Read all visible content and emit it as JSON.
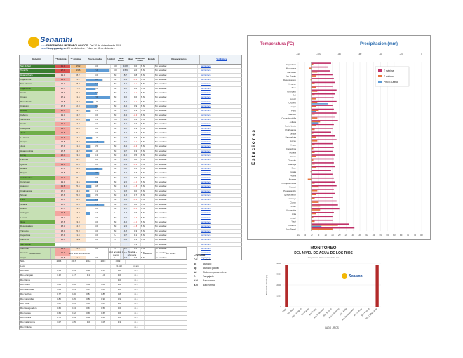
{
  "header": {
    "logo_text": "Senamhi",
    "logo_sub": "Servicio Nacional de Meteorología e Hidrología",
    "title": "DATOS HIDRO-METEOROLÓGICOS",
    "date": "Del 30 de diciembre de 2019",
    "note": "*Temp y precip. de 29 de diciembre / *Nivel de 30 de diciembre"
  },
  "table": {
    "headers": [
      "Estación",
      "*T máxima",
      "*T mínima",
      "Precip. media",
      "Umbral",
      "*Nivel actual",
      "Nivel",
      "Tendencia *Nivel",
      "Estado",
      "Observaciones",
      "Ver Enlace"
    ],
    "rows": [
      [
        "San Rafael",
        "31.0",
        "15.2",
        "0.0",
        "CO",
        "10.8",
        "0.0",
        "N.N",
        "Sin novedad",
        "Ver Enlace"
      ],
      [
        "Tocache",
        "27.4",
        "19.6",
        "7.2",
        "CO",
        "15.9",
        "2.0",
        "N.N",
        "Sin novedad",
        "Ver Enlace"
      ],
      [
        "Huamachuco",
        "19.0",
        "8.2",
        "0.0",
        "Nx",
        "8.7",
        "0.8",
        "N.N",
        "Sin novedad",
        "Ver Enlace"
      ],
      [
        "Cajabamba",
        "19.9",
        "5.2",
        "4.8",
        "Nx",
        "4.9",
        "-0.1",
        "N.N",
        "Sin novedad",
        "Ver Enlace"
      ],
      [
        "San Marcos",
        "16.0",
        "8.2",
        "3.1",
        "Nx",
        "4.0",
        "-0.2",
        "N.N",
        "Sin novedad",
        "Ver Enlace"
      ],
      [
        "Cajamarca",
        "15.5",
        "7.0",
        "2.2",
        "Nx",
        "3.8",
        "1.2",
        "N.N",
        "Sin novedad",
        "Ver Enlace"
      ],
      [
        "Chota",
        "18.9",
        "0.8",
        "2.7",
        "Nx",
        "1.6",
        "-0.7",
        "N.N",
        "Sin novedad",
        "Ver Enlace"
      ],
      [
        "Chugur",
        "17.2",
        "1.5",
        "7.6",
        "Nx",
        "3.5",
        "1.0",
        "N.N",
        "Sin novedad",
        "Ver Enlace"
      ],
      [
        "Pomabamba",
        "17.5",
        "2.9",
        "1.5",
        "Nx",
        "4.3",
        "-0.3",
        "N.N",
        "Sin novedad",
        "Ver Enlace"
      ],
      [
        "Chiquian",
        "17.6",
        "2.9",
        "2.9",
        "Nx",
        "4.3",
        "0.9",
        "N.N",
        "Sin novedad",
        "Ver Enlace"
      ],
      [
        "Recuay",
        "20.6",
        "4.1",
        "0.5",
        "Nx",
        "3.8",
        "1.3",
        "N.N",
        "Sin novedad",
        "Ver Enlace"
      ],
      [
        "Cabana",
        "19.0",
        "4.2",
        "0.0",
        "Nx",
        "4.3",
        "-0.1",
        "N.N",
        "Sin novedad",
        "Ver Enlace"
      ],
      [
        "Santa Ana",
        "12.0",
        "2.6",
        "0.4",
        "CO",
        "3.5",
        "0.4",
        "N.N",
        "Sin novedad",
        "Ver Enlace"
      ],
      [
        "Canta",
        "19.4",
        "4.2",
        "0.0",
        "Nx",
        "4.0",
        "0.3",
        "N.N",
        "Sin novedad",
        "Ver Enlace"
      ],
      [
        "Casapalca",
        "19.7",
        "2.0",
        "0.0",
        "Nx",
        "3.8",
        "1.3",
        "N.N",
        "Sin novedad",
        "Ver Enlace"
      ],
      [
        "Junín",
        "19.8",
        "6.6",
        "0.0",
        "Nx",
        "4.0",
        "0.4",
        "N.N",
        "Sin novedad",
        "Ver Enlace"
      ],
      [
        "La Oroya",
        "19.6",
        "4.5",
        "1.0",
        "Nx",
        "2.8",
        "1.7",
        "N.N",
        "Sin novedad",
        "Ver Enlace"
      ],
      [
        "Huayao",
        "17.5",
        "7.9",
        "5.4",
        "Nx",
        "3.5",
        "-0.7",
        "N.N",
        "Sin novedad",
        "Ver Enlace"
      ],
      [
        "Jauja",
        "17.9",
        "1.4",
        "0.5",
        "Nx",
        "4.9",
        "-0.1",
        "N.N",
        "Sin novedad",
        "Ver Enlace"
      ],
      [
        "Huancavelica",
        "17.5",
        "4.2",
        "1.0",
        "Nx",
        "3.7",
        "1.3",
        "N.N",
        "Sin novedad",
        "Ver Enlace"
      ],
      [
        "Lircay",
        "20.4",
        "3.4",
        "0.4",
        "Nx",
        "4.0",
        "0.5",
        "N.N",
        "Sin novedad",
        "Ver Enlace"
      ],
      [
        "Pampas",
        "17.0",
        "6.2",
        "0.0",
        "Nx",
        "4.4",
        "0.8",
        "N.N",
        "Sin novedad",
        "Ver Enlace"
      ],
      [
        "Quinua",
        "19.8",
        "8.0",
        "0.0",
        "Nx",
        "4.9",
        "-0.1",
        "N.N",
        "Sin novedad",
        "Ver Enlace"
      ],
      [
        "Huanta",
        "17.0",
        "4.8",
        "4.8",
        "Nx",
        "5.0",
        "0.5",
        "N.N",
        "Sin novedad",
        "Ver Enlace"
      ],
      [
        "Puquio",
        "17.5",
        "5.6",
        "3.5",
        "Nx",
        "4.2",
        "1.7",
        "N.N",
        "Sin novedad",
        "Ver Enlace"
      ],
      [
        "Andahuaylas",
        "19.9",
        "6.1",
        "0.0",
        "Nx",
        "3.9",
        "0.3",
        "N.N",
        "Sin novedad",
        "Ver Enlace"
      ],
      [
        "Curahuasi",
        "19.0",
        "1.6",
        "3.1",
        "Nx",
        "2.0",
        "-1.3",
        "N.N",
        "Sin novedad",
        "Ver Enlace"
      ],
      [
        "Abancay",
        "19.8",
        "5.4",
        "0.8",
        "Nx",
        "1.5",
        "-1.8",
        "N.N",
        "Sin novedad",
        "Ver Enlace"
      ],
      [
        "Chalhuanca",
        "17.7",
        "4.8",
        "0.1",
        "U",
        "3.8",
        "1.0",
        "N.N",
        "Sin novedad",
        "Ver Enlace"
      ],
      [
        "Sicuani",
        "17.6",
        "5.0",
        "0.5",
        "Nx",
        "1.8",
        "0.7",
        "N.N",
        "Sin novedad",
        "Ver Enlace"
      ],
      [
        "Puno",
        "16.0",
        "6.0",
        "3.1",
        "Nx",
        "3.1",
        "-0.1",
        "N.N",
        "Sin novedad",
        "Ver Enlace"
      ],
      [
        "Juliaca",
        "18.4",
        "6.0",
        "5.3",
        "Nx",
        "0.0",
        "0.0",
        "N.N",
        "Sin novedad",
        "Ver Enlace"
      ],
      [
        "Ayaviri",
        "17.5",
        "3.3",
        "0.0",
        "Nx",
        "1.8",
        "-0.8",
        "N.N",
        "Sin novedad",
        "Ver Enlace"
      ],
      [
        "Azángaro",
        "19.8",
        "4.3",
        "0.3",
        "U",
        "1.7",
        "0.6",
        "N.N",
        "Sin novedad",
        "Ver Enlace"
      ],
      [
        "Lampa",
        "18.4",
        "4.4",
        "0.0",
        "Nx",
        "3.3",
        "-0.1",
        "N.N",
        "Sin novedad",
        "Ver Enlace"
      ],
      [
        "Ilave",
        "17.6",
        "3.0",
        "0.0",
        "Nx",
        "4.0",
        "-1.3",
        "N.N",
        "Sin novedad",
        "Ver Enlace"
      ],
      [
        "Desaguadero",
        "18.3",
        "4.3",
        "0.0",
        "Nx",
        "2.3",
        "-1.8",
        "N.N",
        "Sin novedad",
        "Ver Enlace"
      ],
      [
        "Yunguyo",
        "18.0",
        "5.3",
        "0.0",
        "Nx",
        "4.8",
        "0.3",
        "N.N",
        "Sin novedad",
        "Ver Enlace"
      ],
      [
        "Capachica",
        "17.9",
        "1.4",
        "0.0",
        "U",
        "3.7",
        "1.1",
        "N.N",
        "Sin novedad",
        "Ver Enlace"
      ],
      [
        "Mazocruz",
        "14.4",
        "-2.4",
        "0.0",
        "U",
        "0.3",
        "0.1",
        "N.N",
        "Sin novedad",
        "Ver Enlace"
      ],
      [
        "San Gabán",
        "",
        "",
        "",
        "",
        "",
        "7.1",
        "",
        "Sin novedad",
        "Ver Enlace"
      ],
      [
        "Macusani",
        "19.8",
        "4.8",
        "0.0",
        "U",
        "3.2",
        "0.5",
        "N.N",
        "Sin novedad",
        "Ver Enlace"
      ],
      [
        "Crucero",
        "19.9",
        "",
        "",
        "U",
        "3.5",
        "0.1",
        "N.N",
        "Sin novedad",
        "Ver Enlace"
      ],
      [
        "Arapa",
        "14.5",
        "1.5",
        "0.0",
        "U",
        "3.7",
        "0.3",
        "N.N",
        "Sin novedad",
        "Ver Enlace"
      ]
    ]
  },
  "rios": {
    "headers": [
      "Observatorio",
      "Serie años de monitoreo",
      "Nivel actual de la cuenca",
      "Nivel de referencia",
      "Diferencia",
      "Ver Enlace"
    ],
    "subheaders": [
      "NAL",
      "2016",
      "2017",
      "2018",
      "2019",
      "2019"
    ],
    "rows": [
      [
        "Lago",
        "",
        "",
        "",
        "",
        "3.810",
        "m.s.n"
      ],
      [
        "Río Ilave",
        "0.54",
        "0.63",
        "0.42",
        "0.55",
        "0.8",
        "m.s"
      ],
      [
        "Río Azángaro",
        "1.12",
        "1.17",
        "1.1",
        "1.0",
        "1.0",
        "m.s"
      ],
      [
        "Río Ramis",
        "",
        "",
        "",
        "",
        "1.0",
        "m.s"
      ],
      [
        "Río Coata",
        "1.06",
        "1.06",
        "1.08",
        "1.00",
        "1.0",
        "m.s"
      ],
      [
        "Río Huancané",
        "1.03",
        "1.01",
        "1.01",
        "1.09",
        "1.2",
        "m.s"
      ],
      [
        "Río Suches",
        "0.77",
        "0.86",
        "0.84",
        "0.85",
        "0.8",
        "m.s"
      ],
      [
        "Río Cabanillas",
        "0.85",
        "0.85",
        "0.80",
        "0.90",
        "0.9",
        "m.s"
      ],
      [
        "Río Verde",
        "1.02",
        "1.05",
        "1.06",
        "1.05",
        "1.0",
        "m.s"
      ],
      [
        "Río Desaguadero",
        "0.65",
        "0.63",
        "0.63",
        "0.56",
        "0.6",
        "m.s"
      ],
      [
        "Río Lampa",
        "0.69",
        "0.62",
        "0.66",
        "0.65",
        "0.6",
        "m.s"
      ],
      [
        "Río Pucará",
        "0.70",
        "0.69",
        "0.68",
        "0.66",
        "0.6",
        "m.s"
      ],
      [
        "Río Callaccame",
        "1.07",
        "1.05",
        "1.0",
        "1.05",
        "1.3",
        "m.s"
      ],
      [
        "Río Orduña",
        "",
        "",
        "",
        "",
        "",
        "m.s"
      ]
    ]
  },
  "leyenda": {
    "title": "Leyenda",
    "items": [
      [
        "Cal",
        "Calienta"
      ],
      [
        "Nx",
        "Nublado"
      ],
      [
        "Np",
        "Nublado parcial"
      ],
      [
        "Nd",
        "Cielo con pocas nubes"
      ],
      [
        "D",
        "Despejado"
      ],
      [
        "N.N",
        "Bajo normal"
      ],
      [
        "B.N",
        "Bajo normal"
      ]
    ]
  },
  "chart_data": [
    {
      "type": "bar",
      "title": "Temperatura (ºC)",
      "subtitle": "Precipitacion (mm)",
      "ylabel": "Estaciones",
      "xlim": [
        -10,
        80
      ],
      "xticks": [
        "-10",
        "-5",
        "0",
        "5",
        "10",
        "15",
        "20",
        "25",
        "30",
        "35",
        "40",
        "45",
        "50",
        "55",
        "60",
        "65",
        "70",
        "75",
        "80"
      ],
      "top_ticks": [
        "-110",
        "-100",
        "-80",
        "-60",
        "-40",
        "-20",
        "0"
      ],
      "legend": [
        "T máxima",
        "T mínima",
        "Precip. Diaria"
      ],
      "colors": [
        "#c0326a",
        "#e8743b",
        "#5d9bd5"
      ],
      "categories": [
        "Capachica",
        "Moquegua",
        "Macusani",
        "San Gabán",
        "Desaguadero",
        "Yunguyo",
        "Ilave",
        "Azángaro",
        "Juli",
        "Ayaviri",
        "Crucero",
        "Lampa",
        "Puno",
        "Mañazo",
        "Chuquibambilla",
        "Juliaca",
        "Santa Lucía",
        "Chalhuanca",
        "Lampa",
        "Pampahuta",
        "Lircay",
        "Arapa",
        "Capachica",
        "Pucará",
        "Taraco",
        "Chucuito",
        "Huaraya",
        "Ilave",
        "Cojata",
        "Putina",
        "Ananea",
        "Chuquibambilla",
        "Sicuani",
        "Paucartambo",
        "Quispicanchi",
        "Acomayo",
        "Cusco",
        "Pisac",
        "Urubamba",
        "Anta",
        "Langui",
        "Yauri",
        "Tocache",
        "San Rafael"
      ],
      "series": [
        {
          "name": "T máxima",
          "values": [
            14,
            12,
            13,
            15,
            16,
            17,
            15,
            18,
            17,
            16,
            18,
            15,
            16,
            18,
            17,
            19,
            16,
            15,
            14,
            17,
            18,
            15,
            16,
            15,
            17,
            16,
            16,
            17,
            14,
            15,
            16,
            17,
            18,
            16,
            17,
            15,
            18,
            19,
            20,
            16,
            15,
            15,
            27,
            31
          ]
        },
        {
          "name": "T mínima",
          "values": [
            1,
            -2,
            4,
            3,
            -1,
            2,
            3,
            4,
            2,
            3,
            4,
            3,
            5,
            2,
            4,
            6,
            3,
            2,
            1,
            3,
            4,
            2,
            1,
            2,
            3,
            1,
            2,
            3,
            -1,
            0,
            -3,
            2,
            5,
            4,
            3,
            2,
            5,
            6,
            6,
            3,
            1,
            2,
            19,
            15
          ]
        },
        {
          "name": "Precip. Diaria",
          "values": [
            0,
            0,
            0,
            0,
            0,
            0,
            0,
            0,
            0,
            0,
            12,
            0,
            3,
            0,
            0,
            5,
            0,
            0,
            0,
            0,
            0,
            0,
            0,
            0,
            0,
            0,
            0,
            0,
            0,
            0,
            0,
            0,
            0,
            0,
            0,
            0,
            0,
            0,
            0,
            0,
            0,
            0,
            7,
            0
          ]
        }
      ]
    },
    {
      "type": "bar",
      "title": "MONITOREO",
      "subtitle": "DEL NIVEL DE AGUA DE LOS RÍOS",
      "note": "Comparación de los niveles de los ríos",
      "ylabel": "NIVEL DE AGUA (m)",
      "xlabel": "LAGO - RÍOS",
      "ylim": [
        0,
        4000
      ],
      "yticks": [
        "4000",
        "3000",
        "2000",
        "1000",
        "0"
      ],
      "categories": [
        "Lago",
        "Río Ilave",
        "Río Azángaro",
        "Río Ramis",
        "Río Coata",
        "Río Huancané",
        "Río Suches",
        "Río Cabanillas",
        "Río Verde",
        "Río Desaguadero",
        "Río Lampa",
        "Río Pucará",
        "Río Callaccame"
      ],
      "series": [
        {
          "name": "2019",
          "values": [
            3810,
            0,
            0,
            0,
            0,
            0,
            0,
            0,
            0,
            0,
            0,
            0,
            3810
          ]
        }
      ]
    }
  ]
}
